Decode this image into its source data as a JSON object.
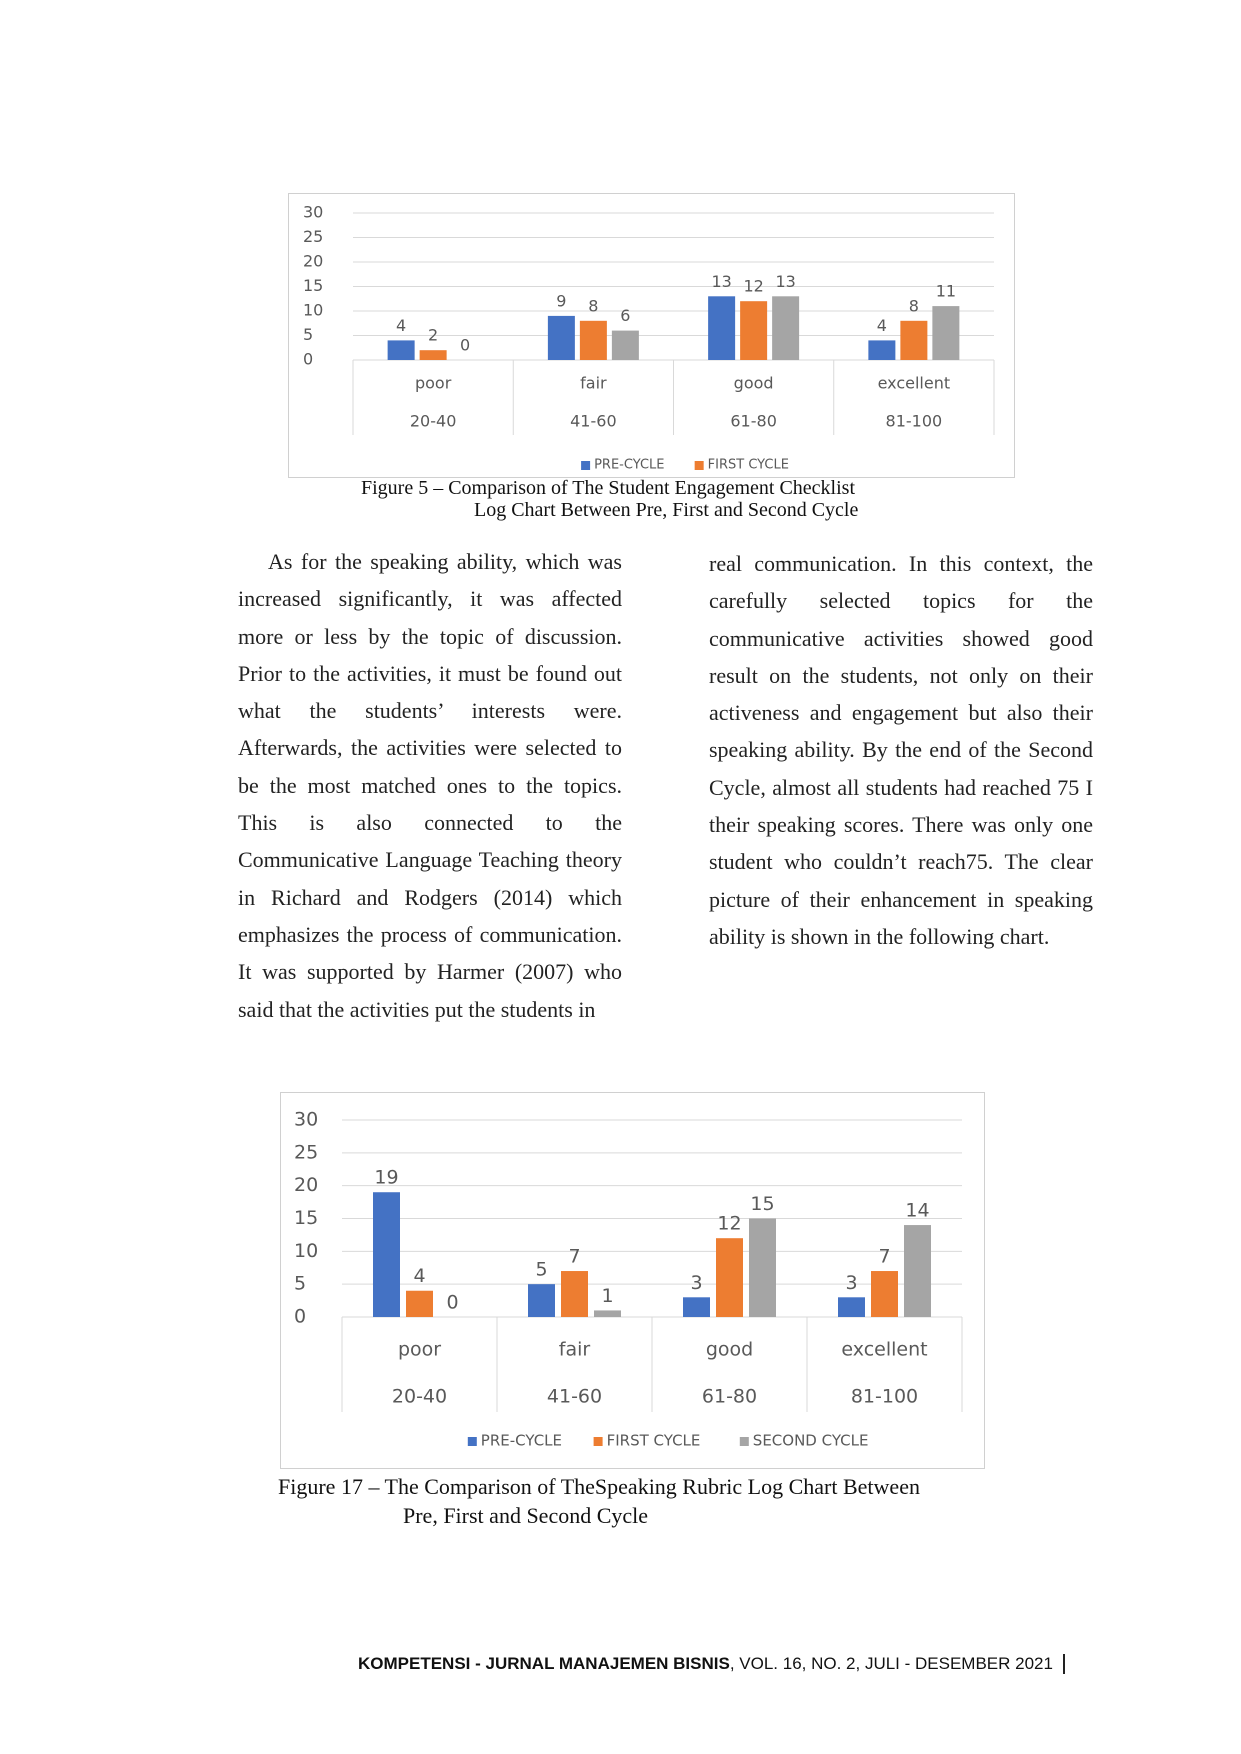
{
  "chart_data": [
    {
      "type": "bar",
      "caption": [
        "Figure 5 – Comparison of The Student Engagement Checklist",
        "Log Chart Between Pre, First and Second Cycle"
      ],
      "categories": [
        "poor",
        "fair",
        "good",
        "excellent"
      ],
      "subcategories": [
        "20-40",
        "41-60",
        "61-80",
        "81-100"
      ],
      "series": [
        {
          "name": "PRE-CYCLE",
          "color": "#4472c4",
          "values": [
            4,
            9,
            13,
            4
          ]
        },
        {
          "name": "FIRST CYCLE",
          "color": "#ed7d31",
          "values": [
            2,
            8,
            12,
            8
          ]
        },
        {
          "color": "#a5a5a5",
          "values": [
            0,
            6,
            13,
            11
          ]
        }
      ],
      "ylim": [
        0,
        30
      ],
      "yticks": [
        0,
        5,
        10,
        15,
        20,
        25,
        30
      ],
      "grid": true
    },
    {
      "type": "bar",
      "caption": [
        "Figure 17 – The Comparison of TheSpeaking Rubric Log Chart Between",
        "Pre, First and Second Cycle"
      ],
      "categories": [
        "poor",
        "fair",
        "good",
        "excellent"
      ],
      "subcategories": [
        "20-40",
        "41-60",
        "61-80",
        "81-100"
      ],
      "series": [
        {
          "name": "PRE-CYCLE",
          "color": "#4472c4",
          "values": [
            19,
            5,
            3,
            3
          ]
        },
        {
          "name": "FIRST CYCLE",
          "color": "#ed7d31",
          "values": [
            4,
            7,
            12,
            7
          ]
        },
        {
          "name": "SECOND CYCLE",
          "color": "#a5a5a5",
          "values": [
            0,
            1,
            15,
            14
          ]
        }
      ],
      "ylim": [
        0,
        30
      ],
      "yticks": [
        0,
        5,
        10,
        15,
        20,
        25,
        30
      ],
      "grid": true
    }
  ],
  "body": {
    "left": "As for the speaking ability, which was increased significantly, it was affected more or less by the topic of discussion. Prior to the activities, it must be found out what the students’ interests were. Afterwards, the activities were selected to be the most matched ones to the topics. This is also connected to the Communicative Language Teaching theory in Richard and Rodgers (2014) which emphasizes the process of communication. It was supported by Harmer (2007) who said that the activities put the students in",
    "right": "real communication. In this context, the carefully selected topics for the communicative activities showed good result on the students, not only on their activeness and engagement but also their speaking ability. By the end of the Second Cycle, almost all students had reached 75 I their speaking scores. There was only one student who couldn’t reach75. The clear picture of their enhancement in speaking ability is shown in the following chart."
  },
  "footer": {
    "journal": "KOMPETENSI - JURNAL MANAJEMEN BISNIS",
    "issue": ", VOL. 16, NO. 2,  JULI - DESEMBER 2021"
  }
}
